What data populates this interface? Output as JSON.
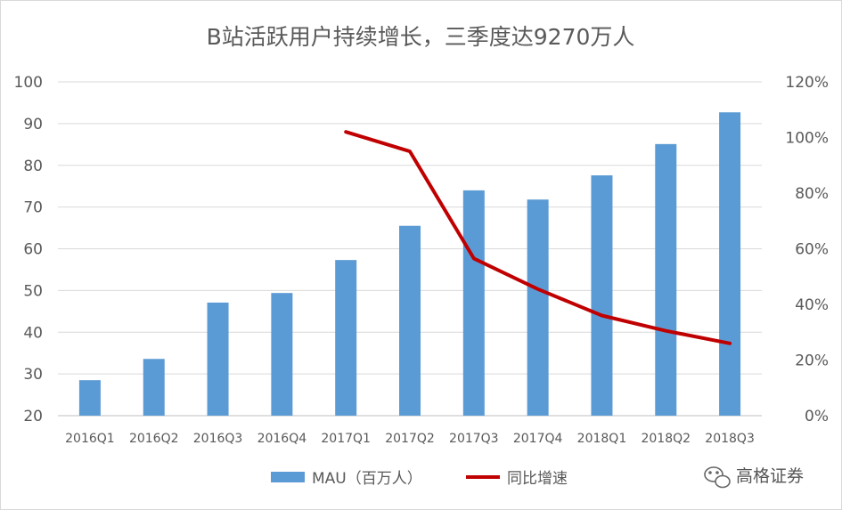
{
  "chart_data": {
    "type": "bar+line",
    "title": "B站活跃用户持续增长，三季度达9270万人",
    "categories": [
      "2016Q1",
      "2016Q2",
      "2016Q3",
      "2016Q4",
      "2017Q1",
      "2017Q2",
      "2017Q3",
      "2017Q4",
      "2018Q1",
      "2018Q2",
      "2018Q3"
    ],
    "series": [
      {
        "name": "MAU（百万人）",
        "type": "bar",
        "axis": "left",
        "color": "#5b9bd5",
        "values": [
          28.5,
          33.6,
          47.1,
          49.4,
          57.3,
          65.5,
          74.0,
          71.8,
          77.6,
          85.1,
          92.7
        ]
      },
      {
        "name": "同比增速",
        "type": "line",
        "axis": "right",
        "color": "#c00000",
        "values": [
          null,
          null,
          null,
          null,
          1.02,
          0.95,
          0.565,
          0.455,
          0.36,
          0.305,
          0.26
        ]
      }
    ],
    "y_left": {
      "min": 20,
      "max": 100,
      "ticks": [
        "20",
        "30",
        "40",
        "50",
        "60",
        "70",
        "80",
        "90",
        "100"
      ]
    },
    "y_right": {
      "min": 0,
      "max": 1.2,
      "ticks": [
        "0%",
        "20%",
        "40%",
        "60%",
        "80%",
        "100%",
        "120%"
      ]
    },
    "grid": true,
    "legend_position": "bottom"
  },
  "watermark": {
    "text": "高格证券",
    "icon": "wechat-icon"
  }
}
